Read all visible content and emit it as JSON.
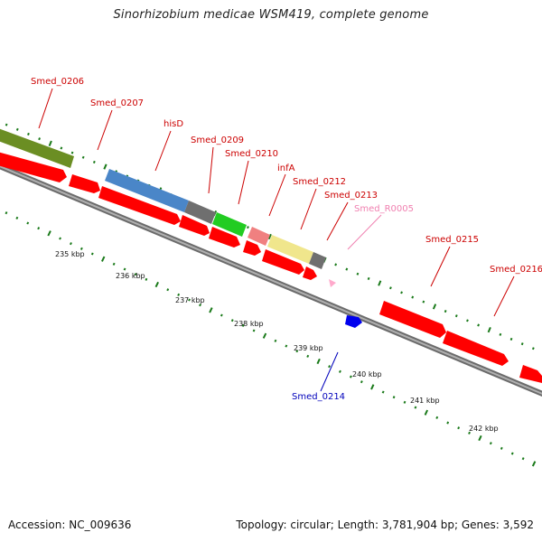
{
  "title": "Sinorhizobium medicae WSM419, complete genome",
  "footer": {
    "accession": "Accession: NC_009636",
    "topology": "Topology: circular; Length: 3,781,904 bp; Genes: 3,592"
  },
  "colors": {
    "cds": "#ff0000",
    "backbone": "#8c8c8c",
    "scale_dots": "#1a7a1a",
    "label_red": "#cc0000",
    "label_pink": "#f080b0",
    "label_blue": "#0000bb",
    "trna": "#ff66aa",
    "other_rna": "#0000ff"
  },
  "map": {
    "kbp_labels": [
      "235 kbp",
      "236 kbp",
      "237 kbp",
      "238 kbp",
      "239 kbp",
      "240 kbp",
      "241 kbp",
      "242 kbp"
    ],
    "genes": [
      {
        "label": "Smed_0206",
        "color": "red"
      },
      {
        "label": "Smed_0207",
        "color": "red"
      },
      {
        "label": "hisD",
        "color": "red"
      },
      {
        "label": "Smed_0209",
        "color": "red"
      },
      {
        "label": "Smed_0210",
        "color": "red"
      },
      {
        "label": "infA",
        "color": "red"
      },
      {
        "label": "Smed_0212",
        "color": "red"
      },
      {
        "label": "Smed_0213",
        "color": "red"
      },
      {
        "label": "Smed_R0005",
        "color": "pink"
      },
      {
        "label": "Smed_0215",
        "color": "red"
      },
      {
        "label": "Smed_0216",
        "color": "red"
      },
      {
        "label": "Smed_0214",
        "color": "blue"
      }
    ]
  }
}
